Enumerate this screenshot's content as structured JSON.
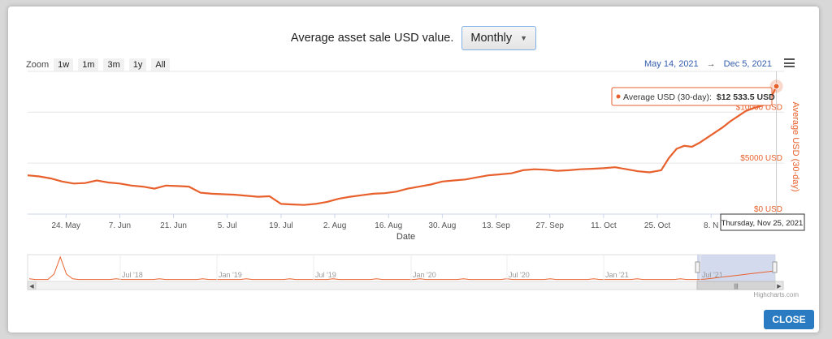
{
  "header": {
    "label": "Average asset sale USD value.",
    "select_value": "Monthly"
  },
  "zoom": {
    "label": "Zoom",
    "buttons": [
      "1w",
      "1m",
      "3m",
      "1y",
      "All"
    ]
  },
  "range": {
    "from": "May 14, 2021",
    "arrow": "→",
    "to": "Dec 5, 2021"
  },
  "tooltip": {
    "series": "Average USD (30-day):",
    "value": "$12 533.5 USD"
  },
  "crosshair_label": "Thursday, Nov 25, 2021",
  "credits": "Highcharts.com",
  "close_label": "CLOSE",
  "colors": {
    "series": "#e8602c",
    "accent": "#2a7bc2",
    "navigator_mask": "#c9d1ea"
  },
  "navigator": {
    "labels": [
      "Jul '18",
      "Jan '19",
      "Jul '19",
      "Jan '20",
      "Jul '20",
      "Jan '21",
      "Jul '21"
    ]
  },
  "chart_data": {
    "type": "line",
    "title": "",
    "xlabel": "Date",
    "ylabel": "Average USD (30-day)",
    "ylim": [
      0,
      14000
    ],
    "yticks": [
      0,
      5000,
      10000
    ],
    "ytick_labels": [
      "$0 USD",
      "$5000 USD",
      "$10000 USD"
    ],
    "xlim": [
      "2021-05-14",
      "2021-11-27"
    ],
    "xticks": [
      "2021-05-24",
      "2021-06-07",
      "2021-06-21",
      "2021-07-05",
      "2021-07-19",
      "2021-08-02",
      "2021-08-16",
      "2021-08-30",
      "2021-09-13",
      "2021-09-27",
      "2021-10-11",
      "2021-10-25",
      "2021-11-08"
    ],
    "xtick_labels": [
      "24. May",
      "7. Jun",
      "21. Jun",
      "5. Jul",
      "19. Jul",
      "2. Aug",
      "16. Aug",
      "30. Aug",
      "13. Sep",
      "27. Sep",
      "11. Oct",
      "25. Oct",
      "8. N"
    ],
    "series": [
      {
        "name": "Average USD (30-day)",
        "x": [
          "2021-05-14",
          "2021-05-17",
          "2021-05-20",
          "2021-05-23",
          "2021-05-26",
          "2021-05-29",
          "2021-06-01",
          "2021-06-04",
          "2021-06-07",
          "2021-06-10",
          "2021-06-13",
          "2021-06-16",
          "2021-06-19",
          "2021-06-22",
          "2021-06-25",
          "2021-06-28",
          "2021-07-01",
          "2021-07-04",
          "2021-07-07",
          "2021-07-10",
          "2021-07-13",
          "2021-07-16",
          "2021-07-19",
          "2021-07-22",
          "2021-07-25",
          "2021-07-28",
          "2021-07-31",
          "2021-08-03",
          "2021-08-06",
          "2021-08-09",
          "2021-08-12",
          "2021-08-15",
          "2021-08-18",
          "2021-08-21",
          "2021-08-24",
          "2021-08-27",
          "2021-08-30",
          "2021-09-02",
          "2021-09-05",
          "2021-09-08",
          "2021-09-11",
          "2021-09-14",
          "2021-09-17",
          "2021-09-20",
          "2021-09-23",
          "2021-09-26",
          "2021-09-29",
          "2021-10-02",
          "2021-10-05",
          "2021-10-08",
          "2021-10-11",
          "2021-10-14",
          "2021-10-17",
          "2021-10-20",
          "2021-10-23",
          "2021-10-26",
          "2021-10-28",
          "2021-10-30",
          "2021-11-01",
          "2021-11-03",
          "2021-11-05",
          "2021-11-07",
          "2021-11-09",
          "2021-11-11",
          "2021-11-13",
          "2021-11-15",
          "2021-11-17",
          "2021-11-19",
          "2021-11-21",
          "2021-11-23",
          "2021-11-25"
        ],
        "y": [
          3800,
          3700,
          3500,
          3200,
          3000,
          3050,
          3300,
          3100,
          3000,
          2800,
          2700,
          2500,
          2800,
          2750,
          2700,
          2100,
          2000,
          1950,
          1900,
          1800,
          1700,
          1750,
          1000,
          950,
          900,
          1000,
          1200,
          1500,
          1700,
          1850,
          2000,
          2050,
          2200,
          2500,
          2700,
          2900,
          3200,
          3300,
          3400,
          3600,
          3800,
          3900,
          4000,
          4300,
          4400,
          4350,
          4250,
          4300,
          4400,
          4450,
          4500,
          4600,
          4400,
          4200,
          4100,
          4300,
          5500,
          6400,
          6700,
          6600,
          7000,
          7500,
          8000,
          8500,
          9100,
          9600,
          10100,
          10400,
          10600,
          10900,
          12533.5
        ]
      }
    ]
  }
}
